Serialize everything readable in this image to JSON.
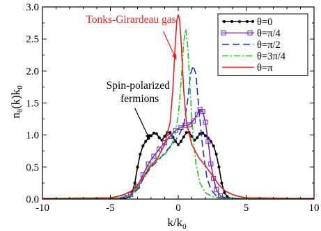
{
  "chart_data": {
    "type": "line",
    "xlabel": "k/k",
    "xlabel_sub": "0",
    "ylabel_parts": [
      "n",
      "θ",
      "(k)k",
      "0"
    ],
    "xlim": [
      -10,
      10
    ],
    "ylim": [
      0,
      3.0
    ],
    "xticks": [
      -10,
      -5,
      0,
      5,
      10
    ],
    "xtick_labels": [
      "-10",
      "-5",
      "0",
      "5",
      "10"
    ],
    "yticks": [
      0,
      0.5,
      1.0,
      1.5,
      2.0,
      2.5,
      3.0
    ],
    "ytick_labels": [
      "0.0",
      "0.5",
      "1.0",
      "1.5",
      "2.0",
      "2.5",
      "3.0"
    ],
    "grid": false,
    "legend_position": "top-right",
    "annotations": [
      {
        "id": "tonks",
        "text_lines": [
          "Tonks-Girardeau gas"
        ],
        "color": "#e8201c",
        "text_at": [
          -6.8,
          2.75
        ],
        "arrow_from": [
          -1.1,
          2.62
        ],
        "arrow_to": [
          -0.15,
          2.18
        ]
      },
      {
        "id": "fermions",
        "text_lines": [
          "Spin-polarized",
          "fermions"
        ],
        "color": "#000000",
        "text_at": [
          -5.3,
          1.72
        ],
        "arrow_from": [
          -3.2,
          1.42
        ],
        "arrow_to": [
          -2.1,
          0.93
        ]
      }
    ],
    "series": [
      {
        "name": "θ=0",
        "color": "#000000",
        "dash": "",
        "marker": "dot",
        "x": [
          -10,
          -4,
          -3.8,
          -3.6,
          -3.4,
          -3.2,
          -3,
          -2.8,
          -2.6,
          -2.4,
          -2.2,
          -2,
          -1.8,
          -1.6,
          -1.4,
          -1.2,
          -1,
          -0.8,
          -0.6,
          -0.4,
          -0.2,
          0,
          0.2,
          0.4,
          0.6,
          0.8,
          1,
          1.2,
          1.4,
          1.6,
          1.8,
          2,
          2.2,
          2.4,
          2.6,
          2.8,
          3,
          3.2,
          3.4,
          3.6,
          3.8,
          4,
          10
        ],
        "y": [
          0.01,
          0.01,
          0.02,
          0.04,
          0.1,
          0.25,
          0.5,
          0.7,
          0.83,
          0.9,
          0.95,
          0.99,
          1.03,
          1.02,
          0.96,
          0.92,
          0.98,
          1.04,
          1.04,
          0.97,
          0.9,
          0.85,
          0.9,
          0.97,
          1.04,
          1.04,
          0.98,
          0.92,
          0.96,
          1.02,
          1.03,
          0.99,
          0.95,
          0.9,
          0.83,
          0.7,
          0.5,
          0.25,
          0.1,
          0.04,
          0.02,
          0.01,
          0.01
        ]
      },
      {
        "name": "θ=π/4",
        "color": "#7a2fb0",
        "dash": "",
        "marker": "square",
        "x": [
          -10,
          -4.5,
          -4,
          -3.5,
          -3,
          -2.6,
          -2.2,
          -1.8,
          -1.4,
          -1,
          -0.6,
          -0.2,
          0.2,
          0.5,
          0.8,
          1.1,
          1.4,
          1.6,
          1.8,
          2,
          2.2,
          2.4,
          2.6,
          2.8,
          3.1,
          3.5,
          4,
          10
        ],
        "y": [
          0.01,
          0.01,
          0.03,
          0.07,
          0.2,
          0.38,
          0.55,
          0.67,
          0.78,
          0.88,
          0.98,
          1.07,
          1.12,
          1.15,
          1.16,
          1.22,
          1.32,
          1.4,
          1.37,
          1.2,
          0.9,
          0.55,
          0.32,
          0.15,
          0.05,
          0.02,
          0.01,
          0.01
        ]
      },
      {
        "name": "θ=π/2",
        "color": "#1530d8",
        "dash": "10,5",
        "marker": "",
        "x": [
          -10,
          -4,
          -3.5,
          -3,
          -2.5,
          -2,
          -1.5,
          -1,
          -0.5,
          0,
          0.4,
          0.7,
          0.9,
          1.1,
          1.3,
          1.5,
          1.8,
          2.1,
          2.4,
          2.8,
          3.2,
          4,
          10
        ],
        "y": [
          0.01,
          0.02,
          0.05,
          0.15,
          0.35,
          0.5,
          0.6,
          0.72,
          0.84,
          0.98,
          1.15,
          1.55,
          1.95,
          2.08,
          1.95,
          1.45,
          0.8,
          0.35,
          0.15,
          0.05,
          0.02,
          0.01,
          0.01
        ]
      },
      {
        "name": "θ=3π/4",
        "color": "#18c818",
        "dash": "9,3,2,3",
        "marker": "",
        "x": [
          -10,
          -4,
          -3.5,
          -3,
          -2.5,
          -2,
          -1.5,
          -1,
          -0.6,
          -0.3,
          0,
          0.2,
          0.4,
          0.55,
          0.7,
          0.9,
          1.1,
          1.3,
          1.6,
          2,
          2.5,
          3,
          4,
          10
        ],
        "y": [
          0.01,
          0.02,
          0.06,
          0.18,
          0.4,
          0.55,
          0.62,
          0.7,
          0.8,
          0.95,
          1.3,
          1.8,
          2.45,
          2.65,
          2.4,
          1.6,
          0.95,
          0.55,
          0.25,
          0.1,
          0.04,
          0.02,
          0.01,
          0.01
        ]
      },
      {
        "name": "θ=π",
        "color": "#e8201c",
        "dash": "",
        "marker": "",
        "x": [
          -10,
          -5,
          -4.5,
          -4,
          -3.5,
          -3,
          -2.5,
          -2,
          -1.5,
          -1,
          -0.6,
          -0.4,
          -0.2,
          -0.1,
          0,
          0.1,
          0.2,
          0.4,
          0.6,
          1,
          1.5,
          2,
          2.5,
          3,
          3.5,
          4,
          4.5,
          5,
          10
        ],
        "y": [
          0.01,
          0.02,
          0.04,
          0.07,
          0.12,
          0.22,
          0.37,
          0.52,
          0.65,
          0.85,
          1.2,
          1.7,
          2.5,
          2.8,
          2.88,
          2.8,
          2.5,
          1.7,
          1.2,
          0.85,
          0.65,
          0.52,
          0.37,
          0.22,
          0.12,
          0.07,
          0.04,
          0.02,
          0.01
        ]
      }
    ]
  }
}
